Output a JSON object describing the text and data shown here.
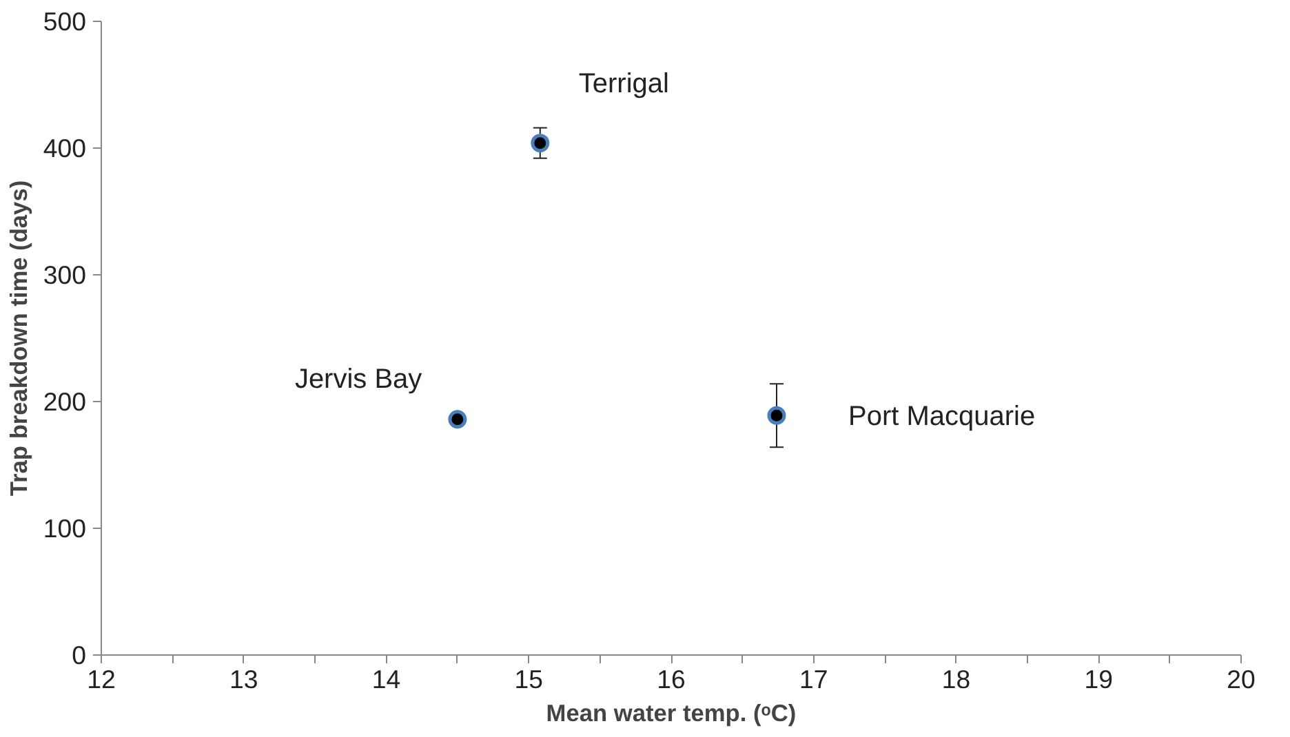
{
  "chart_data": {
    "type": "scatter",
    "xlabel": "Mean water temp. (ᵒC)",
    "ylabel": "Trap breakdown time (days)",
    "x": [
      14.5,
      15.08,
      16.74
    ],
    "series": [
      {
        "color": "#000000",
        "values": [
          186,
          404,
          189
        ],
        "errors": [
          2,
          12,
          25
        ]
      }
    ],
    "marker": "circle",
    "xlim": [
      12,
      20
    ],
    "ylim": [
      0,
      500
    ],
    "xticks": [
      12,
      {
        "value": 12.5,
        "label": null
      },
      13,
      {
        "value": 13.5,
        "label": null
      },
      14,
      {
        "value": 14.5,
        "label": null
      },
      15,
      {
        "value": 15.5,
        "label": null
      },
      16,
      {
        "value": 16.5,
        "label": null
      },
      17,
      {
        "value": 17.5,
        "label": null
      },
      18,
      {
        "value": 18.5,
        "label": null
      },
      19,
      {
        "value": 19.5,
        "label": null
      },
      20
    ],
    "yticks": [
      0,
      100,
      200,
      300,
      400,
      500
    ],
    "grid": false,
    "annotations": [
      {
        "text": "Jervis Bay",
        "x": 14.5,
        "y": 186
      },
      {
        "text": "Terrigal",
        "x": 15.08,
        "y": 404
      },
      {
        "text": "Port Macquarie",
        "x": 16.74,
        "y": 189
      }
    ]
  }
}
